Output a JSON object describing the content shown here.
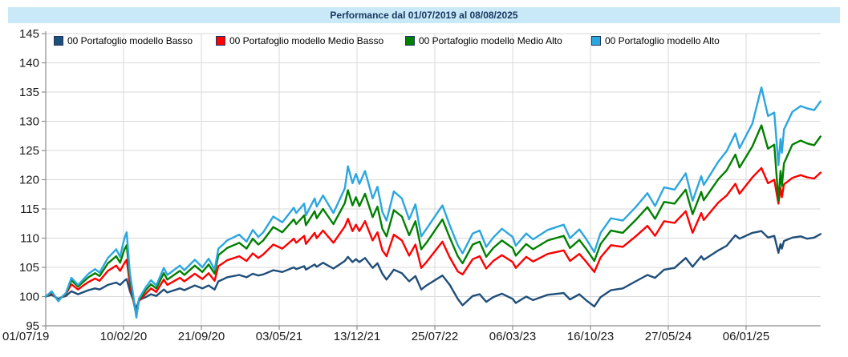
{
  "title": "Performance dal 01/07/2019 al 08/08/2025",
  "colors": {
    "title_bar_bg": "#c9e9f9",
    "title_text": "#17375e",
    "grid": "#d9d9d9",
    "axis": "#8c8c8c",
    "tick_label": "#1a1a1a",
    "series_basso": "#1f4e79",
    "series_medio_basso": "#fe0000",
    "series_medio_alto": "#008000",
    "series_alto": "#2ba6df"
  },
  "legend": {
    "items": [
      {
        "label": "00 Portafoglio modello Basso",
        "color": "#1f4e79"
      },
      {
        "label": "00 Portafoglio modello Medio Basso",
        "color": "#fe0000"
      },
      {
        "label": "00 Portafoglio modello Medio Alto",
        "color": "#008000"
      },
      {
        "label": "00 Portafoglio modello Alto",
        "color": "#2ba6df"
      }
    ]
  },
  "chart_data": {
    "type": "line",
    "title": "Performance dal 01/07/2019 al 08/08/2025",
    "grid": true,
    "legend_position": "top",
    "x_axis": {
      "start_date": "01/07/2019",
      "end_date": "08/08/2025",
      "total_days": 2230,
      "tick_interval_days": 224,
      "ticks": [
        {
          "day": 0,
          "label": "01/07/19"
        },
        {
          "day": 224,
          "label": "10/02/20"
        },
        {
          "day": 448,
          "label": "21/09/20"
        },
        {
          "day": 672,
          "label": "03/05/21"
        },
        {
          "day": 896,
          "label": "13/12/21"
        },
        {
          "day": 1120,
          "label": "25/07/22"
        },
        {
          "day": 1344,
          "label": "06/03/23"
        },
        {
          "day": 1568,
          "label": "16/10/23"
        },
        {
          "day": 1792,
          "label": "27/05/24"
        },
        {
          "day": 2016,
          "label": "06/01/25"
        }
      ]
    },
    "y_axis": {
      "min": 95,
      "max": 145,
      "tick_step": 5,
      "ticks": [
        95,
        100,
        105,
        110,
        115,
        120,
        125,
        130,
        135,
        140,
        145
      ]
    },
    "x_days": [
      0,
      17,
      36,
      46,
      58,
      74,
      93,
      106,
      123,
      142,
      155,
      179,
      203,
      214,
      226,
      233,
      242,
      252,
      261,
      268,
      288,
      303,
      318,
      340,
      350,
      386,
      399,
      429,
      451,
      469,
      486,
      497,
      512,
      522,
      557,
      578,
      596,
      612,
      626,
      655,
      681,
      714,
      721,
      744,
      749,
      774,
      780,
      798,
      828,
      861,
      870,
      883,
      893,
      903,
      919,
      941,
      955,
      969,
      981,
      1002,
      1025,
      1046,
      1064,
      1081,
      1096,
      1142,
      1163,
      1186,
      1200,
      1229,
      1249,
      1268,
      1288,
      1313,
      1344,
      1353,
      1383,
      1403,
      1445,
      1491,
      1509,
      1536,
      1555,
      1579,
      1597,
      1627,
      1661,
      1698,
      1732,
      1754,
      1780,
      1810,
      1842,
      1862,
      1887,
      1894,
      1936,
      1960,
      1985,
      1997,
      2034,
      2060,
      2079,
      2097,
      2109,
      2115,
      2119,
      2125,
      2149,
      2173,
      2192,
      2212,
      2230
    ],
    "series": [
      {
        "name": "00 Portafoglio modello Basso",
        "color": "#1f4e79",
        "values": [
          100,
          100.3,
          99.6,
          99.9,
          100.1,
          100.9,
          100.4,
          100.7,
          101.1,
          101.4,
          101.2,
          102,
          102.4,
          102,
          102.7,
          103,
          101,
          99.4,
          97.9,
          99.4,
          99.9,
          100.4,
          100.1,
          101.2,
          100.7,
          101.4,
          101.1,
          101.9,
          101.4,
          101.9,
          101.2,
          102.6,
          103,
          103.3,
          103.7,
          103.3,
          103.9,
          103.6,
          103.8,
          104.5,
          104.2,
          105,
          104.7,
          105.2,
          104.6,
          105.5,
          105.1,
          105.8,
          104.8,
          106.1,
          106.8,
          105.9,
          106.4,
          105.9,
          106.6,
          104.9,
          105.7,
          103.9,
          102.9,
          104.6,
          104,
          102.6,
          103.5,
          101.2,
          101.9,
          103.6,
          102,
          99.6,
          98.5,
          100.1,
          100.4,
          99.1,
          99.9,
          100.5,
          99.6,
          98.9,
          100,
          99.4,
          100.3,
          100.6,
          99.5,
          100.4,
          99.4,
          98.3,
          99.9,
          101.1,
          101.4,
          102.6,
          103.7,
          103.2,
          104.6,
          104.9,
          106.6,
          105.1,
          106.9,
          106.3,
          107.9,
          108.7,
          110.5,
          109.9,
          110.9,
          111.2,
          110.1,
          110.4,
          107.5,
          109,
          108.2,
          109.5,
          110.1,
          110.3,
          109.9,
          110.1,
          110.7
        ]
      },
      {
        "name": "00 Portafoglio modello Medio Basso",
        "color": "#fe0000",
        "values": [
          100,
          100.6,
          99.4,
          99.9,
          100.4,
          102.1,
          101.2,
          101.8,
          102.5,
          103.1,
          102.7,
          104.4,
          105.3,
          104.4,
          105.7,
          106.3,
          102.2,
          99.4,
          96.8,
          99.2,
          100.5,
          101.4,
          100.8,
          102.9,
          102,
          103.2,
          102.6,
          103.9,
          103,
          104,
          102.7,
          105.2,
          105.8,
          106.2,
          106.9,
          106.1,
          107.4,
          106.6,
          107.2,
          108.9,
          108.2,
          109.9,
          109.2,
          110.4,
          109,
          110.9,
          110,
          111.3,
          109.2,
          112,
          113.3,
          111.2,
          112.3,
          111.2,
          112.9,
          109.6,
          111,
          107.9,
          106.9,
          110.6,
          109.6,
          107,
          108.9,
          104.9,
          105.9,
          109.4,
          106.7,
          104.3,
          103.8,
          106.4,
          106.9,
          104.8,
          106.1,
          107.1,
          105.9,
          104.9,
          106.8,
          106,
          107.3,
          107.9,
          106.1,
          107.3,
          106,
          104.2,
          106.7,
          108.8,
          108.5,
          110.3,
          112.1,
          110.4,
          112.9,
          112.6,
          114.6,
          110.9,
          114.3,
          113.1,
          116.1,
          117.3,
          119.3,
          117.6,
          120.4,
          122,
          119.4,
          120,
          115.9,
          118.6,
          117,
          119.2,
          120.3,
          120.8,
          120.4,
          120.2,
          121.2
        ]
      },
      {
        "name": "00 Portafoglio modello Medio Alto",
        "color": "#008000",
        "values": [
          100,
          100.8,
          99.3,
          99.9,
          100.5,
          102.8,
          101.7,
          102.4,
          103.3,
          104,
          103.5,
          105.7,
          106.9,
          105.8,
          108,
          108.8,
          103.3,
          99.8,
          96.6,
          99.4,
          101.1,
          102.1,
          101.4,
          104,
          102.9,
          104.4,
          103.7,
          105.3,
          104.2,
          105.5,
          103.9,
          107.1,
          107.8,
          108.3,
          109.2,
          108.2,
          109.9,
          108.9,
          109.6,
          111.9,
          111,
          113.2,
          112.4,
          113.9,
          112.2,
          114.6,
          113.4,
          115,
          112.4,
          116,
          118.2,
          115.6,
          117,
          115.5,
          117.6,
          113.6,
          115.4,
          111.6,
          110.3,
          114.8,
          113.7,
          110.5,
          112.9,
          108.1,
          109.2,
          113.2,
          110.1,
          106.9,
          105.7,
          108.9,
          109.4,
          106.8,
          108.3,
          109.6,
          108.3,
          107,
          109,
          108.1,
          109.6,
          110.4,
          108.3,
          109.7,
          108.2,
          106.1,
          109,
          111.3,
          110.9,
          113.1,
          115.3,
          113.3,
          116.2,
          115.9,
          118.3,
          114.1,
          117.9,
          116.5,
          120.1,
          121.6,
          124.3,
          122.1,
          125.7,
          129.3,
          125.3,
          126,
          116.4,
          121.5,
          118.9,
          122.8,
          126,
          126.7,
          126.2,
          125.9,
          127.4
        ]
      },
      {
        "name": "00 Portafoglio modello Alto",
        "color": "#2ba6df",
        "values": [
          100,
          100.9,
          99.2,
          99.9,
          100.6,
          103.2,
          102,
          102.8,
          103.9,
          104.7,
          104.1,
          106.6,
          108.1,
          106.8,
          109.9,
          111,
          104.1,
          100.2,
          96.4,
          99.6,
          101.6,
          102.8,
          101.9,
          104.9,
          103.7,
          105.3,
          104.5,
          106.3,
          105,
          106.5,
          104.6,
          108.2,
          109,
          109.6,
          110.6,
          109.4,
          111.4,
          110.2,
          111,
          113.7,
          112.7,
          115.2,
          114.3,
          115.9,
          113.9,
          116.8,
          115.4,
          117.3,
          114.3,
          118.5,
          122.3,
          119.4,
          121,
          119.3,
          121.5,
          116.8,
          118.8,
          114.5,
          113,
          118,
          116.8,
          113.2,
          115.8,
          110.3,
          111.6,
          115.6,
          112.2,
          108.8,
          107.4,
          110.8,
          111.3,
          108.5,
          110.1,
          111.6,
          110.2,
          108.7,
          110.8,
          109.8,
          111.4,
          112.3,
          110,
          111.5,
          109.9,
          107.6,
          110.9,
          113.4,
          113,
          115.3,
          117.7,
          115.5,
          118.7,
          118.3,
          121.1,
          116.4,
          120.6,
          119.1,
          123.1,
          124.9,
          127.9,
          125.4,
          129.6,
          135.8,
          130.9,
          131.5,
          122.5,
          127,
          124.6,
          128.6,
          131.6,
          132.6,
          132.2,
          131.9,
          133.4
        ]
      }
    ]
  }
}
